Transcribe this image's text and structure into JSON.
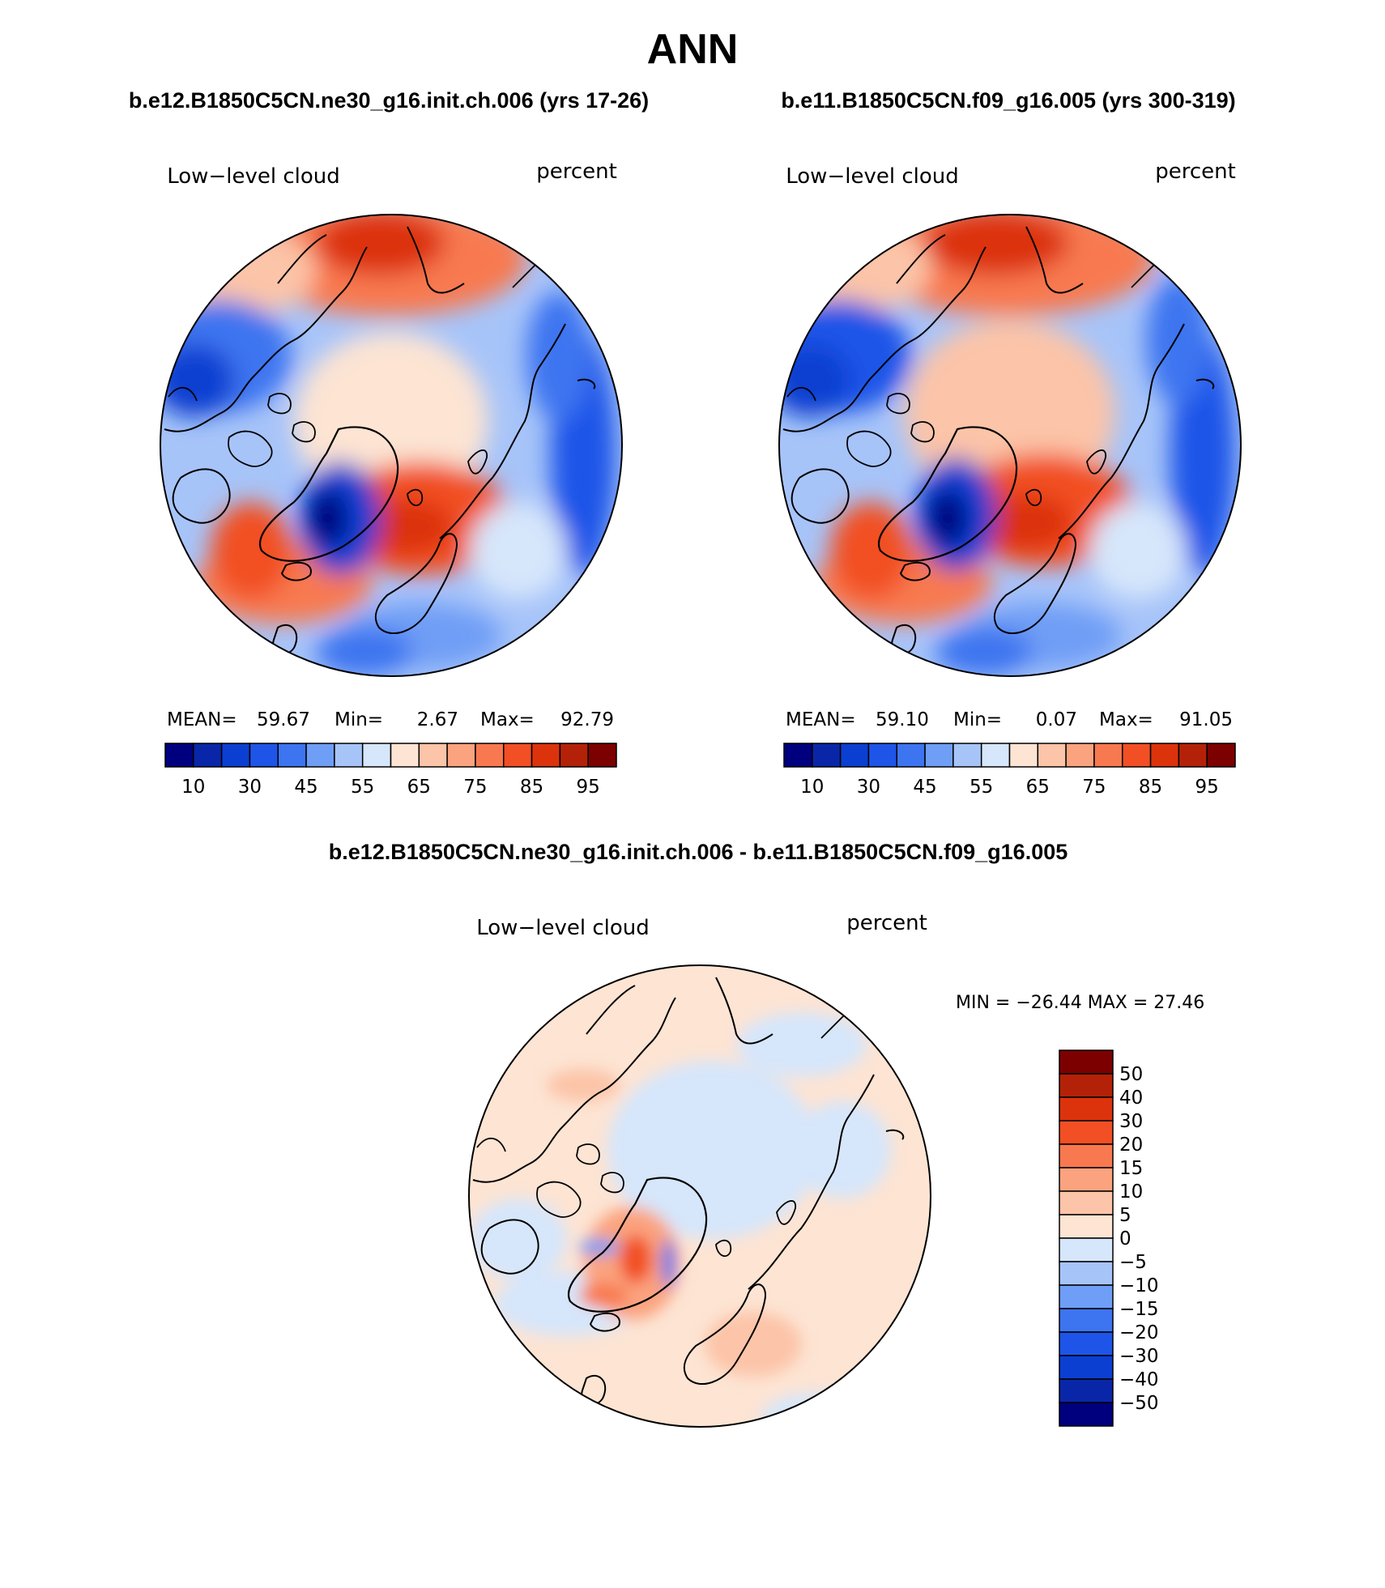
{
  "title": "ANN",
  "colors": {
    "map_levels": [
      "#00007f",
      "#0a26a8",
      "#0b3fd1",
      "#1e55e8",
      "#3d74f0",
      "#6f9ef6",
      "#a7c4f9",
      "#d6e6fb",
      "#fde4d3",
      "#fcc4a8",
      "#fba37f",
      "#f8794f",
      "#f24f24",
      "#dc330c",
      "#b32208",
      "#7d0000"
    ],
    "diff_levels": [
      "#00007f",
      "#0a26a8",
      "#0b3fd1",
      "#1e55e8",
      "#3d74f0",
      "#6f9ef6",
      "#a7c4f9",
      "#d6e6fb",
      "#fde4d3",
      "#fcc4a8",
      "#fba37f",
      "#f8794f",
      "#f24f24",
      "#dc330c",
      "#b32208",
      "#7d0000"
    ]
  },
  "panels": [
    {
      "case": "b.e12.B1850C5CN.ne30_g16.init.ch.006 (yrs 17-26)",
      "variable": "Low−level cloud",
      "units": "percent",
      "mean_label": "MEAN=",
      "mean": "59.67",
      "min_label": "Min=",
      "min": "2.67",
      "max_label": "Max=",
      "max": "92.79",
      "colorbar_labels": [
        "10",
        "30",
        "45",
        "55",
        "65",
        "75",
        "85",
        "95"
      ]
    },
    {
      "case": "b.e11.B1850C5CN.f09_g16.005 (yrs 300-319)",
      "variable": "Low−level cloud",
      "units": "percent",
      "mean_label": "MEAN=",
      "mean": "59.10",
      "min_label": "Min=",
      "min": "0.07",
      "max_label": "Max=",
      "max": "91.05",
      "colorbar_labels": [
        "10",
        "30",
        "45",
        "55",
        "65",
        "75",
        "85",
        "95"
      ]
    }
  ],
  "difference": {
    "title": "b.e12.B1850C5CN.ne30_g16.init.ch.006 - b.e11.B1850C5CN.f09_g16.005",
    "variable": "Low−level cloud",
    "units": "percent",
    "minmax_text": "MIN = −26.44 MAX =  27.46",
    "colorbar_labels": [
      "50",
      "40",
      "30",
      "20",
      "15",
      "10",
      "5",
      "0",
      "−5",
      "−10",
      "−15",
      "−20",
      "−30",
      "−40",
      "−50"
    ]
  },
  "chart_data": [
    {
      "type": "heatmap",
      "projection": "north polar stereographic",
      "title": "b.e12.B1850C5CN.ne30_g16.init.ch.006 (yrs 17-26)",
      "variable": "Low-level cloud",
      "units": "percent",
      "stats": {
        "mean": 59.67,
        "min": 2.67,
        "max": 92.79
      },
      "contour_levels": [
        5,
        10,
        20,
        30,
        40,
        45,
        50,
        55,
        60,
        65,
        70,
        75,
        80,
        85,
        90,
        95
      ]
    },
    {
      "type": "heatmap",
      "projection": "north polar stereographic",
      "title": "b.e11.B1850C5CN.f09_g16.005 (yrs 300-319)",
      "variable": "Low-level cloud",
      "units": "percent",
      "stats": {
        "mean": 59.1,
        "min": 0.07,
        "max": 91.05
      },
      "contour_levels": [
        5,
        10,
        20,
        30,
        40,
        45,
        50,
        55,
        60,
        65,
        70,
        75,
        80,
        85,
        90,
        95
      ]
    },
    {
      "type": "heatmap",
      "projection": "north polar stereographic",
      "title": "b.e12.B1850C5CN.ne30_g16.init.ch.006 - b.e11.B1850C5CN.f09_g16.005",
      "variable": "Low-level cloud",
      "units": "percent",
      "stats": {
        "min": -26.44,
        "max": 27.46
      },
      "contour_levels": [
        -50,
        -40,
        -30,
        -20,
        -15,
        -10,
        -5,
        0,
        5,
        10,
        15,
        20,
        30,
        40,
        50
      ]
    }
  ]
}
